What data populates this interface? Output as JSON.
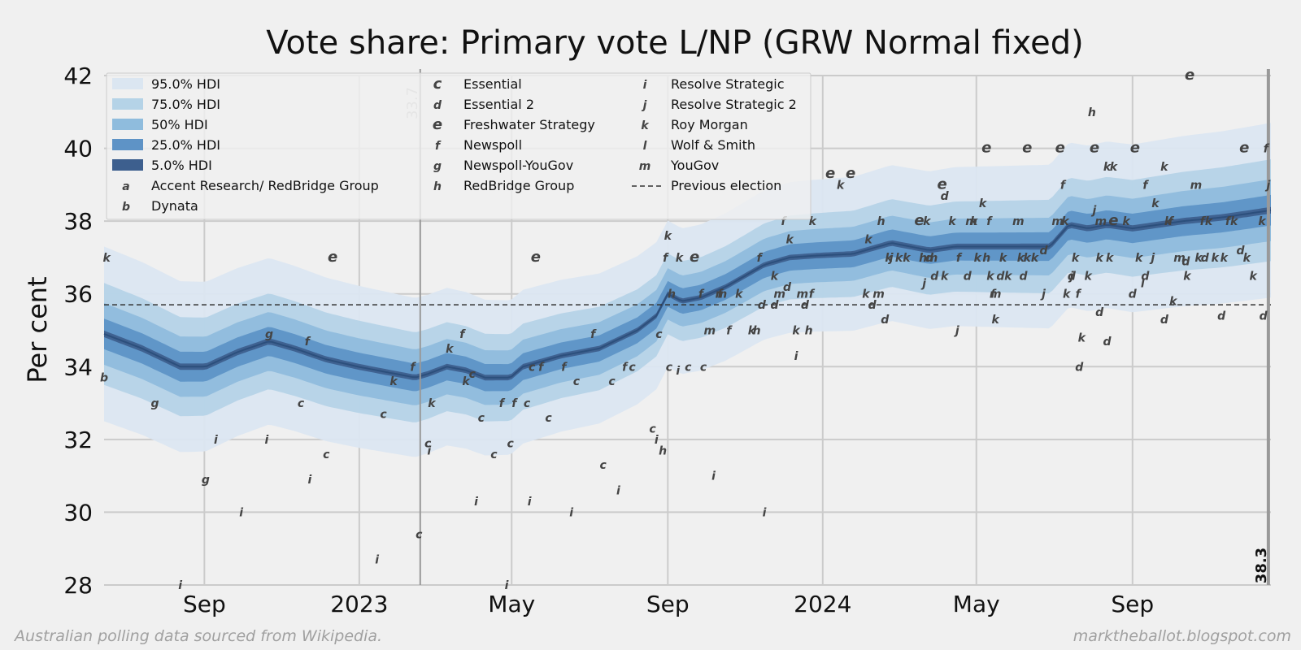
{
  "chart_data": {
    "type": "area",
    "title": "Vote share: Primary vote L/NP (GRW Normal fixed)",
    "ylabel": "Per cent",
    "xlabel": "",
    "ylim": [
      28,
      42
    ],
    "xlim": [
      0,
      919
    ],
    "y_ticks": [
      28,
      30,
      32,
      34,
      36,
      38,
      40,
      42
    ],
    "x_ticks": [
      {
        "label": "Sep",
        "day": 79
      },
      {
        "label": "2023",
        "day": 201
      },
      {
        "label": "May",
        "day": 321
      },
      {
        "label": "Sep",
        "day": 444
      },
      {
        "label": "2024",
        "day": 566
      },
      {
        "label": "May",
        "day": 687
      },
      {
        "label": "Sep",
        "day": 810
      }
    ],
    "x_axis_note": "x values are days since 2022-06-14",
    "previous_election": 35.7,
    "previous_election_label": "Previous election",
    "start_marker": {
      "day": 249,
      "label": "33.7"
    },
    "end_marker": {
      "day": 917,
      "label": "38.3"
    },
    "hdi_bands": [
      {
        "label": "95.0% HDI",
        "color": "#dbe6f1",
        "width": [
          2.4,
          2.0,
          2.4
        ]
      },
      {
        "label": "75.0% HDI",
        "color": "#b5d3e7",
        "width": [
          1.4,
          1.1,
          1.4
        ]
      },
      {
        "label": "50% HDI",
        "color": "#8fbcdd",
        "width": [
          0.85,
          0.7,
          0.85
        ]
      },
      {
        "label": "25.0% HDI",
        "color": "#5e93c6",
        "width": [
          0.42,
          0.35,
          0.42
        ]
      },
      {
        "label": "5.0% HDI",
        "color": "#3d5f8e",
        "width": [
          0.09,
          0.07,
          0.09
        ]
      }
    ],
    "median": {
      "x": [
        0,
        30,
        60,
        80,
        105,
        130,
        150,
        175,
        200,
        230,
        245,
        255,
        270,
        285,
        300,
        320,
        330,
        360,
        390,
        420,
        435,
        444,
        455,
        470,
        490,
        520,
        540,
        560,
        590,
        620,
        650,
        670,
        690,
        720,
        745,
        760,
        775,
        790,
        810,
        830,
        850,
        880,
        900,
        919
      ],
      "y": [
        34.9,
        34.5,
        34.0,
        34.0,
        34.4,
        34.7,
        34.5,
        34.2,
        34.0,
        33.8,
        33.7,
        33.8,
        34.0,
        33.9,
        33.7,
        33.7,
        34.0,
        34.3,
        34.5,
        35.0,
        35.4,
        36.0,
        35.8,
        35.9,
        36.2,
        36.8,
        37.0,
        37.05,
        37.1,
        37.4,
        37.2,
        37.3,
        37.3,
        37.3,
        37.3,
        37.9,
        37.8,
        37.9,
        37.8,
        37.9,
        38.0,
        38.1,
        38.2,
        38.3
      ]
    },
    "legend_pollsters": [
      {
        "key": "a",
        "label": "Accent Research/ RedBridge Group"
      },
      {
        "key": "b",
        "label": "Dynata"
      },
      {
        "key": "c",
        "label": "Essential"
      },
      {
        "key": "d",
        "label": "Essential 2"
      },
      {
        "key": "e",
        "label": "Freshwater Strategy"
      },
      {
        "key": "f",
        "label": "Newspoll"
      },
      {
        "key": "g",
        "label": "Newspoll-YouGov"
      },
      {
        "key": "h",
        "label": "RedBridge Group"
      },
      {
        "key": "i",
        "label": "Resolve Strategic"
      },
      {
        "key": "j",
        "label": "Resolve Strategic 2"
      },
      {
        "key": "k",
        "label": "Roy Morgan"
      },
      {
        "key": "l",
        "label": "Wolf & Smith"
      },
      {
        "key": "m",
        "label": "YouGov"
      }
    ],
    "polls": [
      [
        "k",
        2,
        37.0
      ],
      [
        "b",
        0,
        33.7
      ],
      [
        "g",
        40,
        33.0
      ],
      [
        "i",
        60,
        28.0
      ],
      [
        "g",
        80,
        30.9
      ],
      [
        "i",
        88,
        32.0
      ],
      [
        "i",
        108,
        30.0
      ],
      [
        "i",
        128,
        32.0
      ],
      [
        "g",
        130,
        34.9
      ],
      [
        "c",
        155,
        33.0
      ],
      [
        "f",
        160,
        34.7
      ],
      [
        "i",
        162,
        30.9
      ],
      [
        "c",
        175,
        31.6
      ],
      [
        "e",
        180,
        37.0
      ],
      [
        "i",
        215,
        28.7
      ],
      [
        "c",
        220,
        32.7
      ],
      [
        "k",
        228,
        33.6
      ],
      [
        "f",
        243,
        34.0
      ],
      [
        "c",
        248,
        29.4
      ],
      [
        "c",
        255,
        31.9
      ],
      [
        "i",
        256,
        31.7
      ],
      [
        "k",
        258,
        33.0
      ],
      [
        "k",
        272,
        34.5
      ],
      [
        "f",
        282,
        34.9
      ],
      [
        "k",
        285,
        33.6
      ],
      [
        "c",
        290,
        33.8
      ],
      [
        "i",
        293,
        30.3
      ],
      [
        "c",
        297,
        32.6
      ],
      [
        "c",
        307,
        31.6
      ],
      [
        "f",
        313,
        33.0
      ],
      [
        "i",
        317,
        28.0
      ],
      [
        "c",
        320,
        31.9
      ],
      [
        "f",
        323,
        33.0
      ],
      [
        "c",
        333,
        33.0
      ],
      [
        "i",
        335,
        30.3
      ],
      [
        "c",
        337,
        34.0
      ],
      [
        "e",
        340,
        37.0
      ],
      [
        "f",
        344,
        34.0
      ],
      [
        "c",
        350,
        32.6
      ],
      [
        "f",
        362,
        34.0
      ],
      [
        "i",
        368,
        30.0
      ],
      [
        "c",
        372,
        33.6
      ],
      [
        "f",
        385,
        34.9
      ],
      [
        "c",
        393,
        31.3
      ],
      [
        "c",
        400,
        33.6
      ],
      [
        "i",
        405,
        30.6
      ],
      [
        "f",
        410,
        34.0
      ],
      [
        "c",
        416,
        34.0
      ],
      [
        "c",
        432,
        32.3
      ],
      [
        "i",
        435,
        32.0
      ],
      [
        "c",
        437,
        34.9
      ],
      [
        "h",
        440,
        31.7
      ],
      [
        "f",
        442,
        37.0
      ],
      [
        "k",
        444,
        37.6
      ],
      [
        "c",
        445,
        34.0
      ],
      [
        "h",
        447,
        36.0
      ],
      [
        "i",
        452,
        33.9
      ],
      [
        "k",
        453,
        37.0
      ],
      [
        "c",
        460,
        34.0
      ],
      [
        "e",
        465,
        37.0
      ],
      [
        "f",
        470,
        36.0
      ],
      [
        "c",
        472,
        34.0
      ],
      [
        "m",
        477,
        35.0
      ],
      [
        "i",
        480,
        31.0
      ],
      [
        "f",
        485,
        36.0
      ],
      [
        "m",
        486,
        36.0
      ],
      [
        "f",
        492,
        35.0
      ],
      [
        "k",
        500,
        36.0
      ],
      [
        "k",
        510,
        35.0
      ],
      [
        "h",
        514,
        35.0
      ],
      [
        "f",
        516,
        37.0
      ],
      [
        "d",
        518,
        35.7
      ],
      [
        "i",
        520,
        30.0
      ],
      [
        "d",
        528,
        35.7
      ],
      [
        "k",
        528,
        36.5
      ],
      [
        "m",
        532,
        36.0
      ],
      [
        "f",
        535,
        38.0
      ],
      [
        "d",
        538,
        36.2
      ],
      [
        "k",
        540,
        37.5
      ],
      [
        "i",
        545,
        34.3
      ],
      [
        "k",
        545,
        35.0
      ],
      [
        "m",
        550,
        36.0
      ],
      [
        "d",
        552,
        35.7
      ],
      [
        "h",
        555,
        35.0
      ],
      [
        "f",
        557,
        36.0
      ],
      [
        "k",
        558,
        38.0
      ],
      [
        "e",
        572,
        39.3
      ],
      [
        "k",
        580,
        39.0
      ],
      [
        "e",
        588,
        39.3
      ],
      [
        "k",
        600,
        36.0
      ],
      [
        "k",
        602,
        37.5
      ],
      [
        "d",
        605,
        35.7
      ],
      [
        "m",
        610,
        36.0
      ],
      [
        "h",
        612,
        38.0
      ],
      [
        "d",
        615,
        35.3
      ],
      [
        "k",
        618,
        37.0
      ],
      [
        "j",
        620,
        37.0
      ],
      [
        "k",
        626,
        37.0
      ],
      [
        "k",
        632,
        37.0
      ],
      [
        "e",
        642,
        38.0
      ],
      [
        "h",
        645,
        37.0
      ],
      [
        "j",
        646,
        36.3
      ],
      [
        "k",
        648,
        38.0
      ],
      [
        "d",
        650,
        37.0
      ],
      [
        "m",
        652,
        37.0
      ],
      [
        "d",
        654,
        36.5
      ],
      [
        "e",
        660,
        39.0
      ],
      [
        "k",
        662,
        36.5
      ],
      [
        "d",
        662,
        38.7
      ],
      [
        "k",
        668,
        38.0
      ],
      [
        "j",
        672,
        35.0
      ],
      [
        "f",
        673,
        37.0
      ],
      [
        "d",
        680,
        36.5
      ],
      [
        "m",
        683,
        38.0
      ],
      [
        "k",
        685,
        38.0
      ],
      [
        "k",
        688,
        37.0
      ],
      [
        "k",
        692,
        38.5
      ],
      [
        "h",
        695,
        37.0
      ],
      [
        "f",
        697,
        38.0
      ],
      [
        "e",
        695,
        40.0
      ],
      [
        "k",
        698,
        36.5
      ],
      [
        "f",
        700,
        36.0
      ],
      [
        "k",
        702,
        35.3
      ],
      [
        "m",
        702,
        36.0
      ],
      [
        "d",
        706,
        36.5
      ],
      [
        "k",
        708,
        37.0
      ],
      [
        "k",
        712,
        36.5
      ],
      [
        "e",
        727,
        40.0
      ],
      [
        "m",
        720,
        38.0
      ],
      [
        "k",
        722,
        37.0
      ],
      [
        "d",
        724,
        36.5
      ],
      [
        "k",
        727,
        37.0
      ],
      [
        "k",
        733,
        37.0
      ],
      [
        "d",
        740,
        37.2
      ],
      [
        "j",
        740,
        36.0
      ],
      [
        "m",
        751,
        38.0
      ],
      [
        "e",
        753,
        40.0
      ],
      [
        "f",
        755,
        39.0
      ],
      [
        "k",
        757,
        38.0
      ],
      [
        "k",
        758,
        36.0
      ],
      [
        "d",
        762,
        36.5
      ],
      [
        "j",
        762,
        36.5
      ],
      [
        "k",
        765,
        37.0
      ],
      [
        "f",
        767,
        36.0
      ],
      [
        "d",
        768,
        34.0
      ],
      [
        "k",
        770,
        34.8
      ],
      [
        "k",
        775,
        36.5
      ],
      [
        "h",
        778,
        41.0
      ],
      [
        "j",
        780,
        38.3
      ],
      [
        "e",
        780,
        40.0
      ],
      [
        "k",
        784,
        37.0
      ],
      [
        "m",
        785,
        38.0
      ],
      [
        "d",
        784,
        35.5
      ],
      [
        "k",
        790,
        39.5
      ],
      [
        "d",
        790,
        34.7
      ],
      [
        "k",
        795,
        39.5
      ],
      [
        "k",
        792,
        37.0
      ],
      [
        "e",
        795,
        38.0
      ],
      [
        "k",
        805,
        38.0
      ],
      [
        "d",
        810,
        36.0
      ],
      [
        "e",
        812,
        40.0
      ],
      [
        "k",
        815,
        37.0
      ],
      [
        "l",
        818,
        36.3
      ],
      [
        "f",
        820,
        39.0
      ],
      [
        "d",
        820,
        36.5
      ],
      [
        "j",
        826,
        37.0
      ],
      [
        "k",
        828,
        38.5
      ],
      [
        "k",
        835,
        39.5
      ],
      [
        "d",
        835,
        35.3
      ],
      [
        "k",
        838,
        38.0
      ],
      [
        "f",
        840,
        38.0
      ],
      [
        "k",
        842,
        35.8
      ],
      [
        "m",
        847,
        37.0
      ],
      [
        "d",
        852,
        36.9
      ],
      [
        "k",
        853,
        36.5
      ],
      [
        "e",
        855,
        42.0
      ],
      [
        "m",
        860,
        39.0
      ],
      [
        "k",
        862,
        37.0
      ],
      [
        "f",
        865,
        38.0
      ],
      [
        "d",
        867,
        37.0
      ],
      [
        "k",
        870,
        38.0
      ],
      [
        "k",
        875,
        37.0
      ],
      [
        "d",
        880,
        35.4
      ],
      [
        "k",
        882,
        37.0
      ],
      [
        "f",
        885,
        38.0
      ],
      [
        "k",
        890,
        38.0
      ],
      [
        "d",
        895,
        37.2
      ],
      [
        "k",
        900,
        37.0
      ],
      [
        "e",
        898,
        40.0
      ],
      [
        "k",
        905,
        36.5
      ],
      [
        "d",
        913,
        35.4
      ],
      [
        "k",
        912,
        38.0
      ],
      [
        "j",
        917,
        39.0
      ],
      [
        "f",
        915,
        40.0
      ]
    ]
  },
  "footer": {
    "left": "Australian polling data sourced from Wikipedia.",
    "right": "marktheballot.blogspot.com"
  }
}
